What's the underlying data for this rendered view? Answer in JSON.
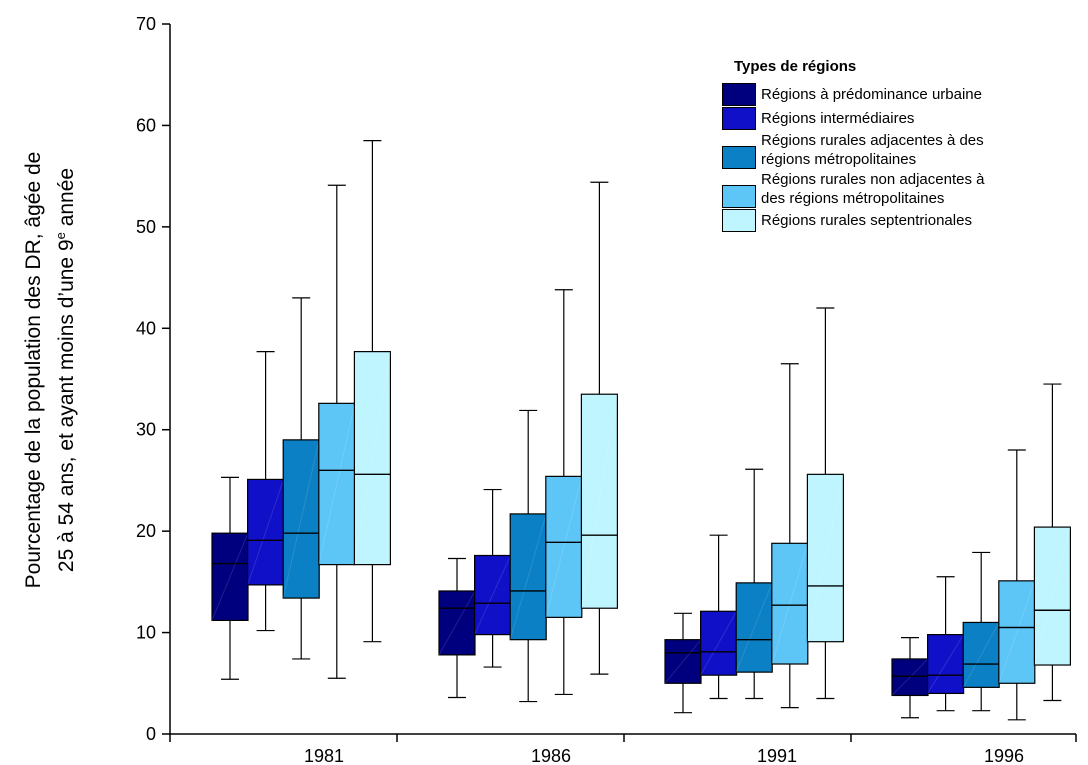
{
  "chart_data": {
    "type": "boxplot",
    "title": "",
    "xlabel": "",
    "ylabel_line1": "Pourcentage de la population des DR, âgée de",
    "ylabel_line2_pre": "25 à 54 ans, et ayant moins d’une 9",
    "ylabel_line2_sup": "e",
    "ylabel_line2_post": " année",
    "ylim": [
      0,
      70
    ],
    "yticks": [
      "0",
      "10",
      "20",
      "30",
      "40",
      "50",
      "60",
      "70"
    ],
    "categories": [
      "1981",
      "1986",
      "1991",
      "1996"
    ],
    "legend_title": "Types de régions",
    "legend_position": "top-right",
    "series": [
      {
        "name": "Régions à prédominance urbaine",
        "color": "#00007f",
        "boxes": [
          {
            "min": 5.4,
            "q1": 11.2,
            "median": 16.8,
            "q3": 19.8,
            "max": 25.3
          },
          {
            "min": 3.6,
            "q1": 7.8,
            "median": 12.4,
            "q3": 14.1,
            "max": 17.3
          },
          {
            "min": 2.1,
            "q1": 5.0,
            "median": 8.0,
            "q3": 9.3,
            "max": 11.9
          },
          {
            "min": 1.6,
            "q1": 3.8,
            "median": 5.7,
            "q3": 7.4,
            "max": 9.5
          }
        ]
      },
      {
        "name": "Régions intermédiaires",
        "color": "#1010c8",
        "boxes": [
          {
            "min": 10.2,
            "q1": 14.7,
            "median": 19.1,
            "q3": 25.1,
            "max": 37.7
          },
          {
            "min": 6.6,
            "q1": 9.8,
            "median": 12.9,
            "q3": 17.6,
            "max": 24.1
          },
          {
            "min": 3.5,
            "q1": 5.8,
            "median": 8.1,
            "q3": 12.1,
            "max": 19.6
          },
          {
            "min": 2.3,
            "q1": 4.0,
            "median": 5.8,
            "q3": 9.8,
            "max": 15.5
          }
        ]
      },
      {
        "name": "Régions rurales adjacentes à des régions métropolitaines",
        "legend_lines": [
          "Régions rurales adjacentes à des",
          "régions métropolitaines"
        ],
        "color": "#0b80c4",
        "boxes": [
          {
            "min": 7.4,
            "q1": 13.4,
            "median": 19.8,
            "q3": 29.0,
            "max": 43.0
          },
          {
            "min": 3.2,
            "q1": 9.3,
            "median": 14.1,
            "q3": 21.7,
            "max": 31.9
          },
          {
            "min": 3.5,
            "q1": 6.1,
            "median": 9.3,
            "q3": 14.9,
            "max": 26.1
          },
          {
            "min": 2.3,
            "q1": 4.6,
            "median": 6.9,
            "q3": 11.0,
            "max": 17.9
          }
        ]
      },
      {
        "name": "Régions rurales non adjacentes à des régions métropolitaines",
        "legend_lines": [
          "Régions rurales non adjacentes à",
          "des régions métropolitaines"
        ],
        "color": "#5ec6f7",
        "boxes": [
          {
            "min": 5.5,
            "q1": 16.7,
            "median": 26.0,
            "q3": 32.6,
            "max": 54.1
          },
          {
            "min": 3.9,
            "q1": 11.5,
            "median": 18.9,
            "q3": 25.4,
            "max": 43.8
          },
          {
            "min": 2.6,
            "q1": 6.9,
            "median": 12.7,
            "q3": 18.8,
            "max": 36.5
          },
          {
            "min": 1.4,
            "q1": 5.0,
            "median": 10.5,
            "q3": 15.1,
            "max": 28.0
          }
        ]
      },
      {
        "name": "Régions rurales septentrionales",
        "color": "#bff5ff",
        "boxes": [
          {
            "min": 9.1,
            "q1": 16.7,
            "median": 25.6,
            "q3": 37.7,
            "max": 58.5
          },
          {
            "min": 5.9,
            "q1": 12.4,
            "median": 19.6,
            "q3": 33.5,
            "max": 54.4
          },
          {
            "min": 3.5,
            "q1": 9.1,
            "median": 14.6,
            "q3": 25.6,
            "max": 42.0
          },
          {
            "min": 3.3,
            "q1": 6.8,
            "median": 12.2,
            "q3": 20.4,
            "max": 34.5
          }
        ]
      }
    ]
  }
}
